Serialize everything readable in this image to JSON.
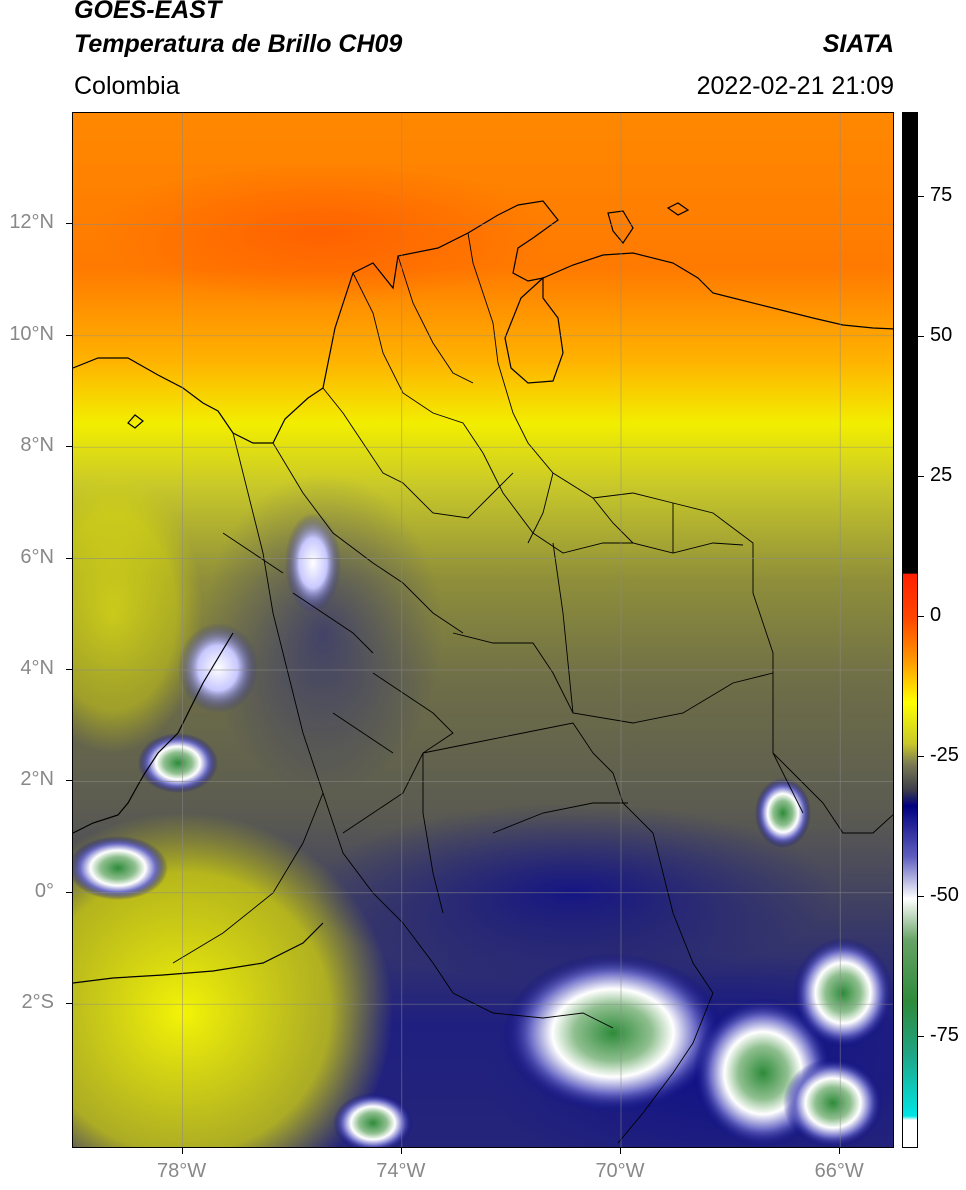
{
  "header": {
    "title_line1": "GOES-EAST",
    "title_line2": "Temperatura de Brillo CH09",
    "source": "SIATA",
    "region": "Colombia",
    "timestamp": "2022-02-21 21:09"
  },
  "map": {
    "lat_ticks": [
      "12°N",
      "10°N",
      "8°N",
      "6°N",
      "4°N",
      "2°N",
      "0°",
      "2°S"
    ],
    "lon_ticks": [
      "78°W",
      "74°W",
      "70°W",
      "66°W"
    ],
    "extent": {
      "lon_min": -80,
      "lon_max": -65,
      "lat_min": -4.6,
      "lat_max": 14
    }
  },
  "colorbar": {
    "labels": [
      "75",
      "50",
      "25",
      "0",
      "-25",
      "-50",
      "-75"
    ],
    "values": [
      75,
      50,
      25,
      0,
      -25,
      -50,
      -75
    ],
    "range": [
      -95,
      90
    ],
    "colors": {
      "black": "#000000",
      "red": "#ff1f00",
      "orange": "#ff8c00",
      "yellow": "#ffff00",
      "olive": "#9c9c2a",
      "dark_gray": "#3d3d4a",
      "navy": "#000080",
      "white": "#ffffff",
      "green": "#2e8b3a",
      "cyan": "#00e5e5"
    }
  }
}
